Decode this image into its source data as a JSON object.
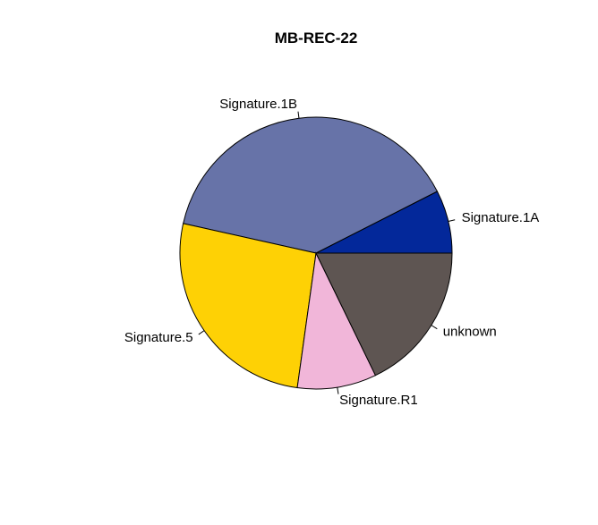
{
  "chart_data": {
    "type": "pie",
    "title": "MB-REC-22",
    "start_angle_deg": 0,
    "direction": "counterclockwise",
    "slices": [
      {
        "label": "Signature.1A",
        "value": 7.5,
        "color": "#03289A"
      },
      {
        "label": "Signature.1B",
        "value": 39.0,
        "color": "#6773A8"
      },
      {
        "label": "Signature.5",
        "value": 26.3,
        "color": "#FED105"
      },
      {
        "label": "Signature.R1",
        "value": 9.4,
        "color": "#F1B6D9"
      },
      {
        "label": "unknown",
        "value": 17.8,
        "color": "#5E5552"
      }
    ]
  }
}
